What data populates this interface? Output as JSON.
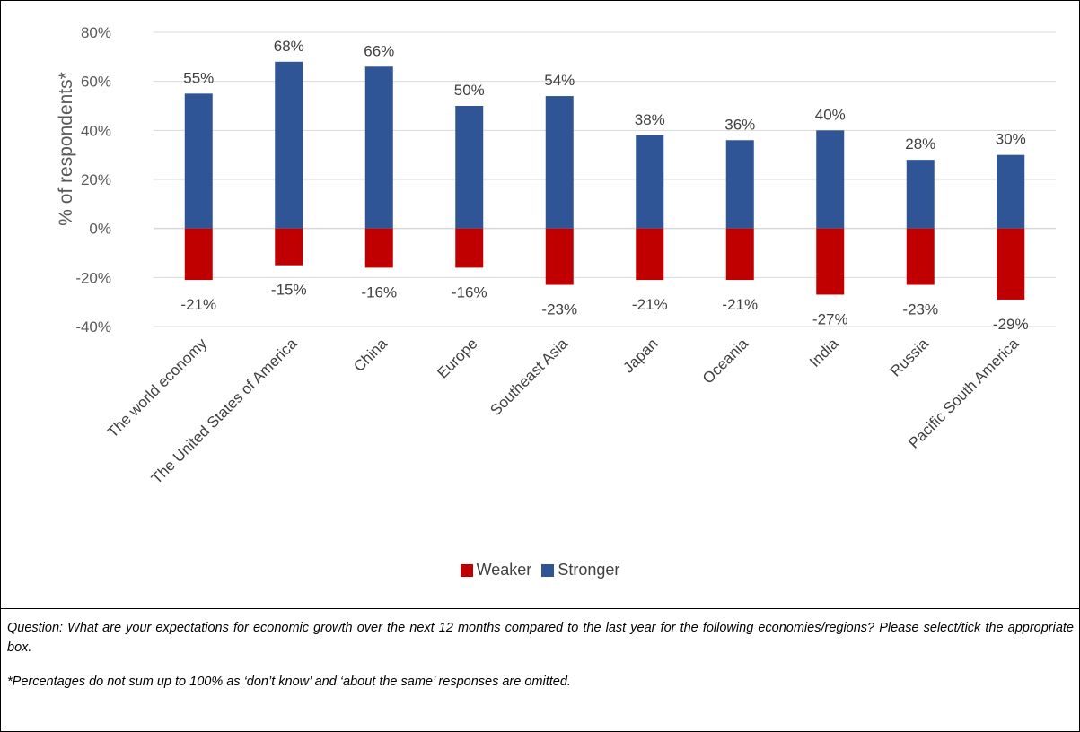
{
  "chart_data": {
    "type": "bar",
    "categories": [
      "The world economy",
      "The United States of America",
      "China",
      "Europe",
      "Southeast Asia",
      "Japan",
      "Oceania",
      "India",
      "Russia",
      "Pacific South America"
    ],
    "series": [
      {
        "name": "Stronger",
        "color": "#2f5597",
        "values": [
          55,
          68,
          66,
          50,
          54,
          38,
          36,
          40,
          28,
          30
        ],
        "labels": [
          "55%",
          "68%",
          "66%",
          "50%",
          "54%",
          "38%",
          "36%",
          "40%",
          "28%",
          "30%"
        ]
      },
      {
        "name": "Weaker",
        "color": "#c00000",
        "values": [
          -21,
          -15,
          -16,
          -16,
          -23,
          -21,
          -21,
          -27,
          -23,
          -29
        ],
        "labels": [
          "-21%",
          "-15%",
          "-16%",
          "-16%",
          "-23%",
          "-21%",
          "-21%",
          "-27%",
          "-23%",
          "-29%"
        ]
      }
    ],
    "ylabel": "% of respondents*",
    "ylim": [
      -40,
      80
    ],
    "yticks": [
      -40,
      -20,
      0,
      20,
      40,
      60,
      80
    ],
    "ytick_labels": [
      "-40%",
      "-20%",
      "0%",
      "20%",
      "40%",
      "60%",
      "80%"
    ],
    "grid": true,
    "legend_position": "bottom"
  },
  "legend": {
    "weaker_label": "Weaker",
    "stronger_label": "Stronger"
  },
  "notes": {
    "question": "Question: What are your expectations for economic growth over the next 12 months compared to the last year for the following economies/regions? Please select/tick the appropriate box.",
    "footnote": "*Percentages do not sum up to 100% as ‘don’t know’ and ‘about the same’ responses are omitted."
  }
}
